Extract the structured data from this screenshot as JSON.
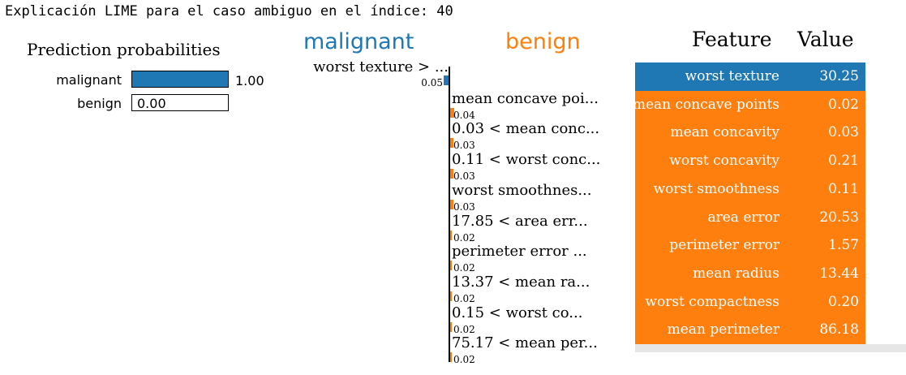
{
  "heading": "Explicación LIME para el caso ambiguo en el índice: 40",
  "colors": {
    "malignant": "#1f77b4",
    "benign": "#ff7f0e"
  },
  "prediction": {
    "title": "Prediction probabilities",
    "rows": [
      {
        "label": "malignant",
        "value": 1.0,
        "value_text": "1.00"
      },
      {
        "label": "benign",
        "value": 0.0,
        "value_text": "0.00"
      }
    ]
  },
  "explanation": {
    "negative_title": "malignant",
    "positive_title": "benign"
  },
  "table": {
    "header_feature": "Feature",
    "header_value": "Value"
  },
  "chart_data": {
    "type": "bar",
    "orientation": "horizontal",
    "title": "",
    "categories": [
      "worst texture > ...",
      "mean concave poi...",
      "0.03 < mean conc...",
      "0.11 < worst conc...",
      "worst smoothnes...",
      "17.85 < area err...",
      "perimeter error ...",
      "13.37 < mean ra...",
      "0.15 < worst co...",
      "75.17 < mean per..."
    ],
    "values": [
      -0.05,
      0.04,
      0.03,
      0.03,
      0.03,
      0.02,
      0.02,
      0.02,
      0.02,
      0.02
    ],
    "value_labels": [
      "0.05",
      "0.04",
      "0.03",
      "0.03",
      "0.03",
      "0.02",
      "0.02",
      "0.02",
      "0.02",
      "0.02"
    ],
    "series_classes": [
      "malignant",
      "benign",
      "benign",
      "benign",
      "benign",
      "benign",
      "benign",
      "benign",
      "benign",
      "benign"
    ],
    "table_rows": [
      {
        "feature": "worst texture",
        "value": "30.25",
        "class": "malignant"
      },
      {
        "feature": "mean concave points",
        "value": "0.02",
        "class": "benign"
      },
      {
        "feature": "mean concavity",
        "value": "0.03",
        "class": "benign"
      },
      {
        "feature": "worst concavity",
        "value": "0.21",
        "class": "benign"
      },
      {
        "feature": "worst smoothness",
        "value": "0.11",
        "class": "benign"
      },
      {
        "feature": "area error",
        "value": "20.53",
        "class": "benign"
      },
      {
        "feature": "perimeter error",
        "value": "1.57",
        "class": "benign"
      },
      {
        "feature": "mean radius",
        "value": "13.44",
        "class": "benign"
      },
      {
        "feature": "worst compactness",
        "value": "0.20",
        "class": "benign"
      },
      {
        "feature": "mean perimeter",
        "value": "86.18",
        "class": "benign"
      }
    ]
  }
}
